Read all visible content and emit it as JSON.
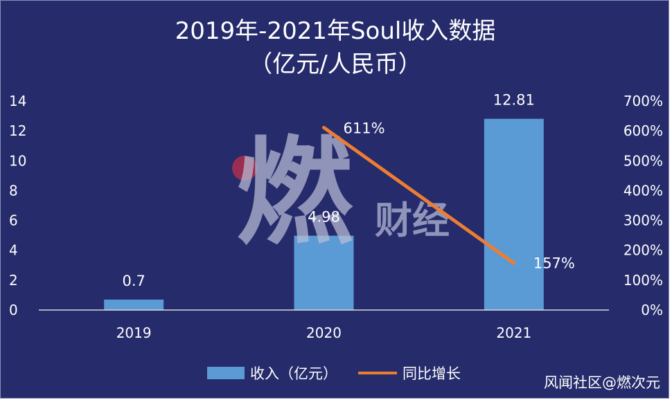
{
  "header": {
    "title": "2019年-2021年Soul收入数据",
    "subtitle": "（亿元/人民币）"
  },
  "chart_data": {
    "type": "bar",
    "categories": [
      "2019",
      "2020",
      "2021"
    ],
    "series": [
      {
        "name": "收入（亿元）",
        "type": "bar",
        "axis": "left",
        "values": [
          0.7,
          4.98,
          12.81
        ],
        "labels": [
          "0.7",
          "4.98",
          "12.81"
        ],
        "color": "#5b9bd5"
      },
      {
        "name": "同比增长",
        "type": "line",
        "axis": "right",
        "x": [
          "2020",
          "2021"
        ],
        "values": [
          611,
          157
        ],
        "labels": [
          "611%",
          "157%"
        ],
        "color": "#ed7d31"
      }
    ],
    "y_left": {
      "range": [
        0,
        14
      ],
      "ticks": [
        "0",
        "2",
        "4",
        "6",
        "8",
        "10",
        "12",
        "14"
      ]
    },
    "y_right": {
      "range": [
        0,
        700
      ],
      "ticks": [
        "0%",
        "100%",
        "200%",
        "300%",
        "400%",
        "500%",
        "600%",
        "700%"
      ]
    },
    "grid": false,
    "legend": "bottom",
    "background": "#252b6b"
  },
  "overlay": {
    "logo_text": "燃财经",
    "watermark": "风闻社区@燃次元"
  }
}
